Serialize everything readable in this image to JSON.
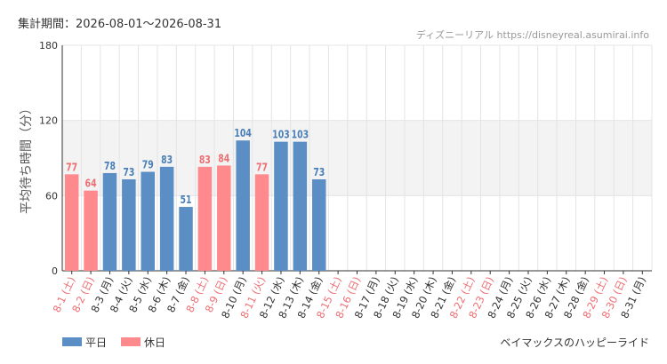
{
  "header": {
    "period": "集計期間：2026-08-01〜2026-08-31",
    "source": "ディズニーリアル https://disneyreal.asumirai.info"
  },
  "footer": {
    "attraction": "ベイマックスのハッピーライド"
  },
  "colors": {
    "weekday": "#5b8ec5",
    "holiday": "#ff8a8e",
    "weekday_label": "#4a7fb8",
    "holiday_label": "#ee6e73",
    "band": "#f3f3f3",
    "grid": "#e4e4e4",
    "axis": "#333333"
  },
  "chart_data": {
    "type": "bar",
    "ylabel": "平均待ち時間（分）",
    "ylim": [
      0,
      180
    ],
    "yticks": [
      0,
      60,
      120,
      180
    ],
    "highlight_band": [
      60,
      120
    ],
    "grid": true,
    "legend_position": "bottom-left",
    "legend": [
      {
        "key": "weekday",
        "label": "平日"
      },
      {
        "key": "holiday",
        "label": "休日"
      }
    ],
    "categories": [
      "8-1 (土)",
      "8-2 (日)",
      "8-3 (月)",
      "8-4 (火)",
      "8-5 (水)",
      "8-6 (木)",
      "8-7 (金)",
      "8-8 (土)",
      "8-9 (日)",
      "8-10 (月)",
      "8-11 (火)",
      "8-12 (水)",
      "8-13 (木)",
      "8-14 (金)",
      "8-15 (土)",
      "8-16 (日)",
      "8-17 (月)",
      "8-18 (火)",
      "8-19 (水)",
      "8-20 (木)",
      "8-21 (金)",
      "8-22 (土)",
      "8-23 (日)",
      "8-24 (月)",
      "8-25 (火)",
      "8-26 (水)",
      "8-27 (木)",
      "8-28 (金)",
      "8-29 (土)",
      "8-30 (日)",
      "8-31 (月)"
    ],
    "day_type": [
      "holiday",
      "holiday",
      "weekday",
      "weekday",
      "weekday",
      "weekday",
      "weekday",
      "holiday",
      "holiday",
      "weekday",
      "holiday",
      "weekday",
      "weekday",
      "weekday",
      "holiday",
      "holiday",
      "weekday",
      "weekday",
      "weekday",
      "weekday",
      "weekday",
      "holiday",
      "holiday",
      "weekday",
      "weekday",
      "weekday",
      "weekday",
      "weekday",
      "holiday",
      "holiday",
      "weekday"
    ],
    "values": [
      77,
      64,
      78,
      73,
      79,
      83,
      51,
      83,
      84,
      104,
      77,
      103,
      103,
      73,
      null,
      null,
      null,
      null,
      null,
      null,
      null,
      null,
      null,
      null,
      null,
      null,
      null,
      null,
      null,
      null,
      null
    ]
  }
}
